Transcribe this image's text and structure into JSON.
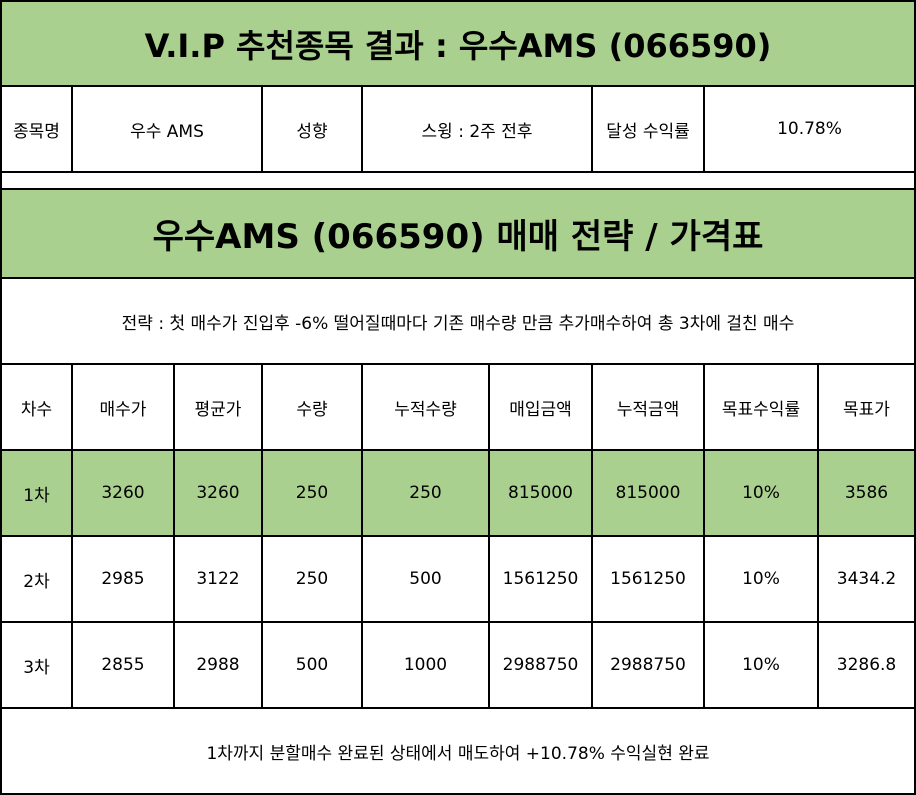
{
  "title": "V.I.P 추천종목 결과 : 우수AMS (066590)",
  "info": {
    "name_label": "종목명",
    "name_value": "우수 AMS",
    "tendency_label": "성향",
    "tendency_value": "스윙 : 2주 전후",
    "return_label": "달성 수익률",
    "return_value": "10.78%"
  },
  "strategy": {
    "title": "우수AMS (066590) 매매 전략 / 가격표",
    "description": "전략 : 첫 매수가 진입후 -6% 떨어질때마다 기존 매수량 만큼 추가매수하여 총 3차에 걸친 매수"
  },
  "table": {
    "headers": [
      "차수",
      "매수가",
      "평균가",
      "수량",
      "누적수량",
      "매입금액",
      "누적금액",
      "목표수익률",
      "목표가"
    ],
    "rows": [
      [
        "1차",
        "3260",
        "3260",
        "250",
        "250",
        "815000",
        "815000",
        "10%",
        "3586"
      ],
      [
        "2차",
        "2985",
        "3122",
        "250",
        "500",
        "1561250",
        "1561250",
        "10%",
        "3434.2"
      ],
      [
        "3차",
        "2855",
        "2988",
        "500",
        "1000",
        "2988750",
        "2988750",
        "10%",
        "3286.8"
      ]
    ]
  },
  "footer": "1차까지 분할매수 완료된 상태에서 매도하여 +10.78% 수익실현 완료",
  "colors": {
    "header_green": "#a9d08e",
    "border": "#000000"
  }
}
